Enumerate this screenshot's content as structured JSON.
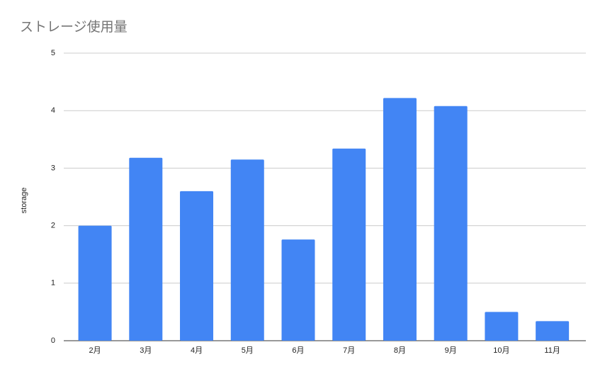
{
  "chart_data": {
    "type": "bar",
    "title": "ストレージ使用量",
    "y_label": "storage",
    "categories": [
      "2月",
      "3月",
      "4月",
      "5月",
      "6月",
      "7月",
      "8月",
      "9月",
      "10月",
      "11月"
    ],
    "values": [
      2.0,
      3.18,
      2.6,
      3.15,
      1.76,
      3.34,
      4.22,
      4.08,
      0.5,
      0.34
    ],
    "color": "#4285f4",
    "ylim": [
      0,
      5
    ],
    "yticks": [
      0,
      1,
      2,
      3,
      4,
      5
    ],
    "grid": true
  }
}
